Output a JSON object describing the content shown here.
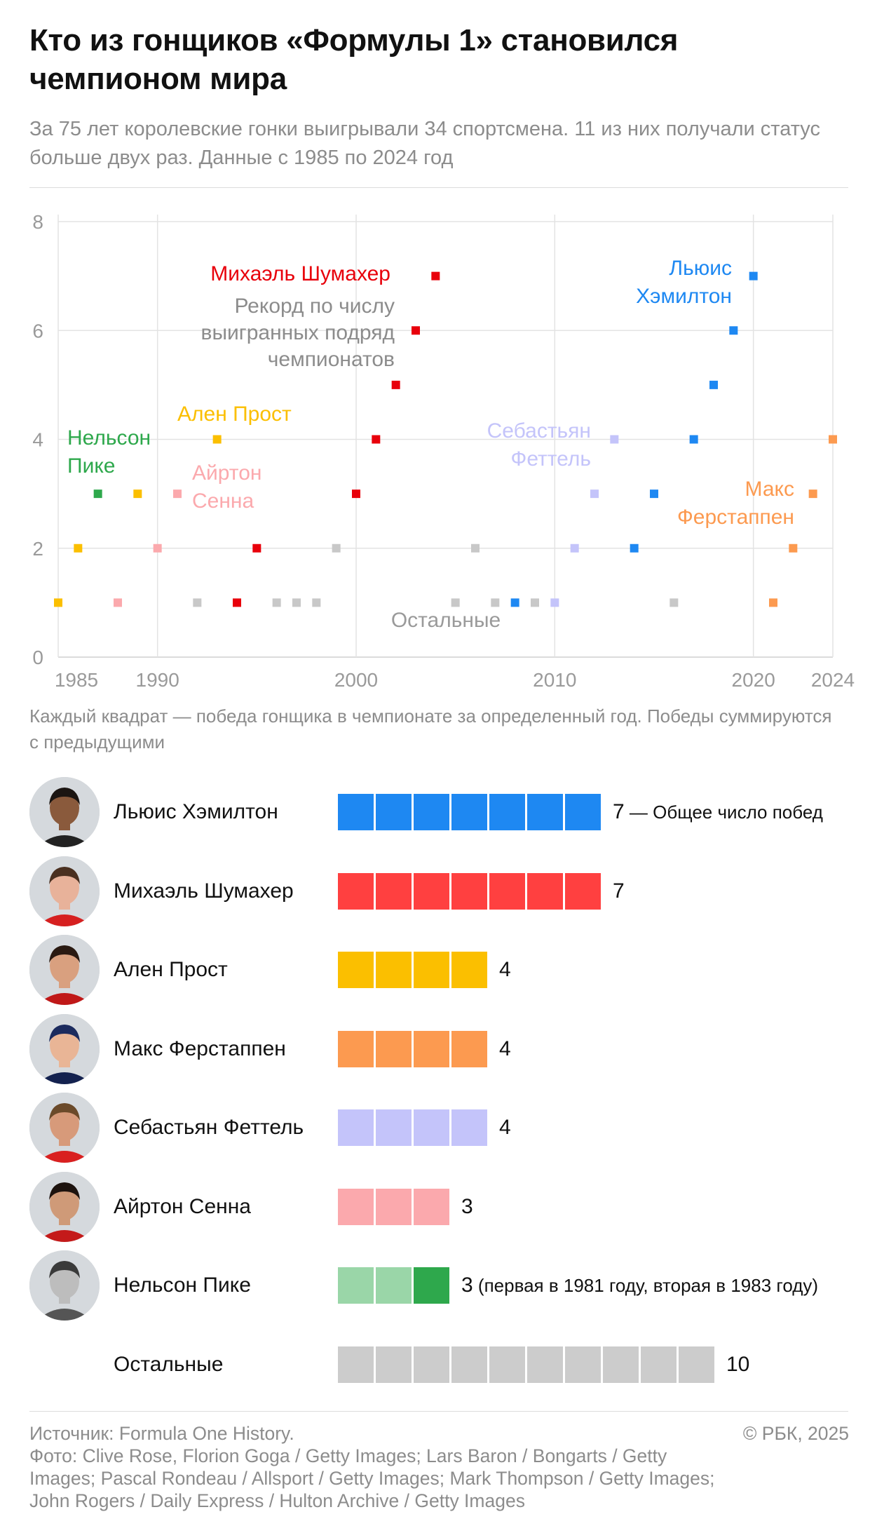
{
  "header": {
    "title": "Кто из гонщиков «Формулы 1» становился чемпионом мира",
    "subtitle": "За 75 лет королевские гонки выигрывали 34 спортсмена. 11 из них получали статус больше двух раз. Данные с 1985 по 2024 год"
  },
  "chart_data": {
    "type": "scatter",
    "title": "",
    "xlabel": "",
    "ylabel": "",
    "xlim": [
      1985,
      2024
    ],
    "ylim": [
      0,
      8
    ],
    "xticks": [
      1985,
      1990,
      2000,
      2010,
      2020,
      2024
    ],
    "yticks": [
      0,
      2,
      4,
      6,
      8
    ],
    "grid": true,
    "legend": "none",
    "series": [
      {
        "name": "Михаэль Шумахер",
        "color": "#e8000b",
        "points": [
          [
            1994,
            1
          ],
          [
            1995,
            2
          ],
          [
            2000,
            3
          ],
          [
            2001,
            4
          ],
          [
            2002,
            5
          ],
          [
            2003,
            6
          ],
          [
            2004,
            7
          ]
        ]
      },
      {
        "name": "Льюис Хэмилтон",
        "color": "#1e88f2",
        "points": [
          [
            2008,
            1
          ],
          [
            2014,
            2
          ],
          [
            2015,
            3
          ],
          [
            2017,
            4
          ],
          [
            2018,
            5
          ],
          [
            2019,
            6
          ],
          [
            2020,
            7
          ]
        ]
      },
      {
        "name": "Ален Прост",
        "color": "#fbbf00",
        "points": [
          [
            1985,
            1
          ],
          [
            1986,
            2
          ],
          [
            1989,
            3
          ],
          [
            1993,
            4
          ]
        ]
      },
      {
        "name": "Макс Ферстаппен",
        "color": "#fc9a50",
        "points": [
          [
            2021,
            1
          ],
          [
            2022,
            2
          ],
          [
            2023,
            3
          ],
          [
            2024,
            4
          ]
        ]
      },
      {
        "name": "Себастьян Феттель",
        "color": "#c4c4fa",
        "points": [
          [
            2010,
            1
          ],
          [
            2011,
            2
          ],
          [
            2012,
            3
          ],
          [
            2013,
            4
          ]
        ]
      },
      {
        "name": "Айртон Сенна",
        "color": "#fba9ad",
        "points": [
          [
            1988,
            1
          ],
          [
            1990,
            2
          ],
          [
            1991,
            3
          ]
        ]
      },
      {
        "name": "Нельсон Пике",
        "color": "#2ea84c",
        "points": [
          [
            1987,
            3
          ]
        ]
      },
      {
        "name": "Остальные",
        "color": "#c8c8c8",
        "points": [
          [
            1992,
            1
          ],
          [
            1996,
            1
          ],
          [
            1997,
            1
          ],
          [
            1998,
            1
          ],
          [
            1999,
            2
          ],
          [
            2005,
            1
          ],
          [
            2006,
            2
          ],
          [
            2007,
            1
          ],
          [
            2009,
            1
          ],
          [
            2016,
            1
          ]
        ]
      }
    ],
    "annotations": {
      "schumacher": "Михаэль Шумахер",
      "record_line1": "Рекорд по числу",
      "record_line2": "выигранных подряд",
      "record_line3": "чемпионатов",
      "hamilton_line1": "Льюис",
      "hamilton_line2": "Хэмилтон",
      "prost": "Ален Прост",
      "piquet_line1": "Нельсон",
      "piquet_line2": "Пике",
      "senna_line1": "Айртон",
      "senna_line2": "Сенна",
      "vettel_line1": "Себастьян",
      "vettel_line2": "Феттель",
      "verstappen_line1": "Макс",
      "verstappen_line2": "Ферстаппен",
      "others": "Остальные"
    }
  },
  "note": "Каждый квадрат — победа гонщика в чемпионате за определенный год. Победы суммируются с предыдущими",
  "ranking": [
    {
      "name": "Льюис Хэмилтон",
      "count": "7",
      "extra": " — Общее число побед",
      "color": "#1e88f2",
      "wins": 7,
      "avatar": "hamilton-photo",
      "skin": "#8a5a3c",
      "hair": "#1b1512",
      "shirt": "#222222"
    },
    {
      "name": "Михаэль Шумахер",
      "count": "7",
      "extra": "",
      "color": "#ff4040",
      "wins": 7,
      "avatar": "schumacher-photo",
      "skin": "#e8b29a",
      "hair": "#4a3020",
      "shirt": "#d62020"
    },
    {
      "name": "Ален Прост",
      "count": "4",
      "extra": "",
      "color": "#fbbf00",
      "wins": 4,
      "avatar": "prost-photo",
      "skin": "#d9a07f",
      "hair": "#2a1a12",
      "shirt": "#c01818"
    },
    {
      "name": "Макс Ферстаппен",
      "count": "4",
      "extra": "",
      "color": "#fc9a50",
      "wins": 4,
      "avatar": "verstappen-photo",
      "skin": "#e9b596",
      "hair": "#1c2b5e",
      "shirt": "#14224f"
    },
    {
      "name": "Себастьян Феттель",
      "count": "4",
      "extra": "",
      "color": "#c4c4fa",
      "wins": 4,
      "avatar": "vettel-photo",
      "skin": "#d79a7a",
      "hair": "#6b4a2a",
      "shirt": "#d92020"
    },
    {
      "name": "Айртон Сенна",
      "count": "3",
      "extra": "",
      "color": "#fba9ad",
      "wins": 3,
      "avatar": "senna-photo",
      "skin": "#cf9a78",
      "hair": "#1d130e",
      "shirt": "#c41a1a"
    },
    {
      "name": "Нельсон Пике",
      "count": "3",
      "extra": " (первая в 1981 году, вторая в 1983 году)",
      "color": "#2ea84c",
      "light": "#9ad6a8",
      "wins": 3,
      "light_count": 2,
      "avatar": "piquet-photo",
      "skin": "#bdbdbd",
      "hair": "#3a3a3a",
      "shirt": "#555555"
    },
    {
      "name": "Остальные",
      "count": "10",
      "extra": "",
      "color": "#cccccc",
      "wins": 10,
      "avatar": ""
    }
  ],
  "footer": {
    "source": "Источник: Formula One History.",
    "photo": "Фото: Clive Rose, Florion Goga / Getty Images; Lars Baron / Bongarts / Getty Images; Pascal Rondeau / Allsport / Getty Images; Mark Thompson / Getty Images; John Rogers / Daily Express / Hulton Archive / Getty Images",
    "copyright": "© РБК, 2025"
  }
}
